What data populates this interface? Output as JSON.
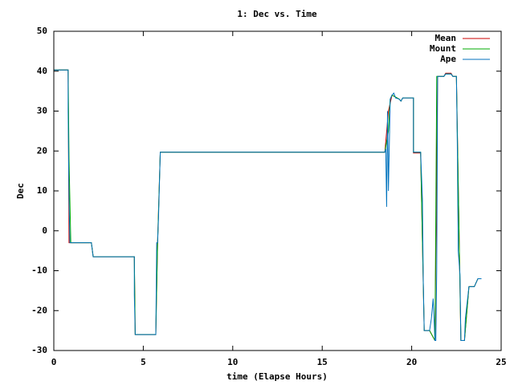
{
  "chart_data": {
    "type": "line",
    "title": "1: Dec vs. Time",
    "x_label": "time (Elapse Hours)",
    "y_label": "Dec",
    "xlim": [
      0,
      25
    ],
    "xticks": [
      0,
      5,
      10,
      15,
      20,
      25
    ],
    "ylim": [
      -30,
      50
    ],
    "yticks": [
      -30,
      -20,
      -10,
      0,
      10,
      20,
      30,
      40,
      50
    ],
    "legend": "upper-right",
    "series": [
      {
        "name": "Mean",
        "color": "#cc0000",
        "x": [
          0,
          0.8,
          0.85,
          2.1,
          2.2,
          4.5,
          4.55,
          5.7,
          5.8,
          5.95,
          18.5,
          18.7,
          18.9,
          19.3,
          19.4,
          19.5,
          20.1,
          20.1,
          20.5,
          20.7,
          21.0,
          21.3,
          21.45,
          21.8,
          21.9,
          22.2,
          22.3,
          22.5,
          22.75,
          22.95,
          23.2,
          23.5,
          23.7,
          23.9
        ],
        "values": [
          40.3,
          40.3,
          -3,
          -3,
          -6.5,
          -6.5,
          -26,
          -26,
          -3,
          19.7,
          19.7,
          30,
          34,
          33,
          32.5,
          33.3,
          33.3,
          19.5,
          19.5,
          -25,
          -25,
          -27.5,
          38.7,
          38.7,
          39.5,
          39.5,
          38.7,
          38.7,
          -27.5,
          -27.5,
          -14,
          -14,
          -12,
          -12
        ]
      },
      {
        "name": "Mount",
        "color": "#00aa00",
        "x": [
          0,
          0.8,
          0.85,
          0.95,
          2.1,
          2.2,
          4.5,
          4.55,
          5.7,
          5.8,
          5.95,
          18.5,
          18.7,
          18.8,
          18.9,
          19.3,
          19.4,
          19.5,
          20.1,
          20.1,
          20.5,
          20.7,
          21.0,
          21.3,
          21.35,
          21.4,
          21.8,
          21.9,
          22.2,
          22.3,
          22.5,
          22.75,
          22.95,
          23.2,
          23.5,
          23.7,
          23.9
        ],
        "values": [
          40.3,
          40.3,
          18,
          -3,
          -3,
          -6.5,
          -6.5,
          -26,
          -26,
          -3,
          19.7,
          19.7,
          25,
          33,
          34,
          33,
          32.5,
          33.3,
          33.3,
          19.7,
          19.7,
          -25,
          -25,
          -27.5,
          5,
          38.7,
          38.7,
          39.3,
          39.3,
          38.7,
          38.7,
          -27.5,
          -27.5,
          -14,
          -14,
          -12,
          -12
        ]
      },
      {
        "name": "Ape",
        "color": "#0072bd",
        "x": [
          0,
          0.8,
          0.8,
          0.85,
          0.9,
          2.1,
          2.2,
          4.5,
          4.5,
          4.55,
          5.7,
          5.75,
          5.8,
          5.85,
          5.95,
          18.5,
          18.55,
          18.6,
          18.65,
          18.7,
          18.8,
          18.9,
          19.0,
          19.1,
          19.3,
          19.4,
          19.5,
          20.1,
          20.1,
          20.5,
          20.6,
          20.65,
          20.7,
          21.0,
          21.1,
          21.2,
          21.3,
          21.35,
          21.4,
          21.45,
          21.8,
          21.9,
          22.2,
          22.3,
          22.5,
          22.55,
          22.6,
          22.7,
          22.75,
          22.95,
          23.0,
          23.1,
          23.2,
          23.5,
          23.6,
          23.7,
          23.9
        ],
        "values": [
          40.3,
          40.3,
          30,
          8,
          -3,
          -3,
          -6.5,
          -6.5,
          -16,
          -26,
          -26,
          -3,
          -3,
          3,
          19.7,
          19.7,
          20.5,
          6,
          30,
          10,
          33,
          34,
          34.5,
          33.3,
          33,
          32.5,
          33.3,
          33.3,
          19.7,
          19.7,
          8,
          -13,
          -25,
          -25,
          -22,
          -17,
          -27.5,
          -27.5,
          -10,
          38.7,
          38.7,
          39.3,
          39.3,
          38.7,
          38.7,
          22,
          -5,
          -11,
          -27.5,
          -27.5,
          -22,
          -18,
          -14,
          -14,
          -13,
          -12,
          -12
        ]
      }
    ]
  }
}
